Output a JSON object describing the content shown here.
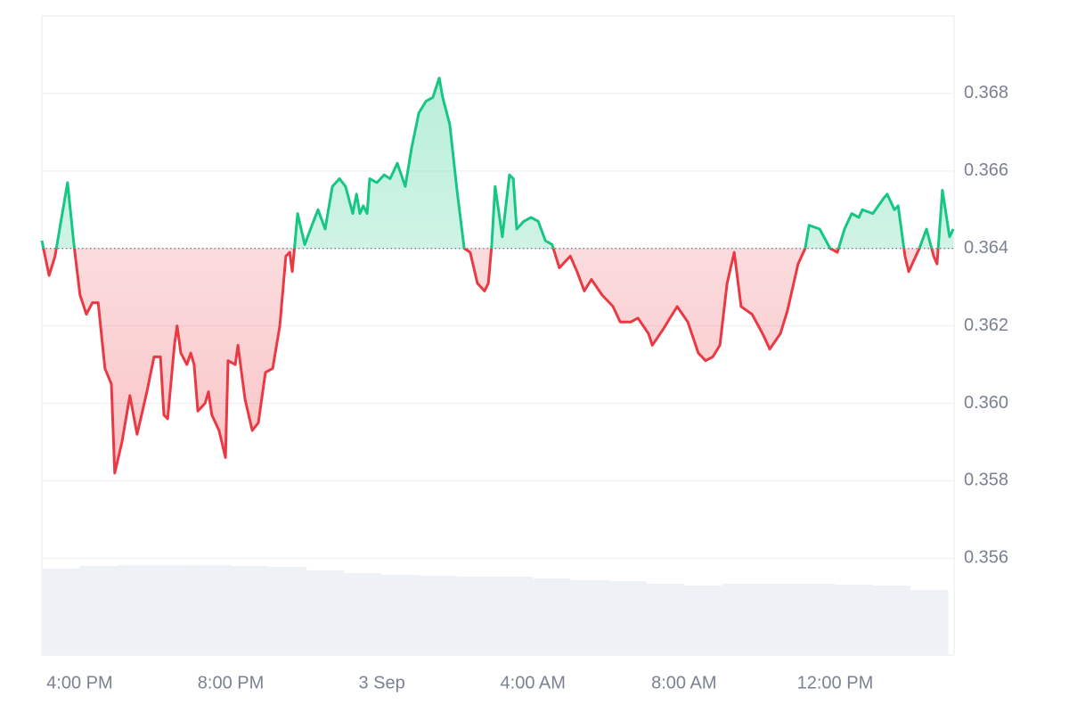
{
  "chart_data": {
    "type": "line",
    "x": [
      0.0,
      0.19,
      0.35,
      0.54,
      0.68,
      0.85,
      1.01,
      1.18,
      1.34,
      1.49,
      1.67,
      1.84,
      1.93,
      2.12,
      2.33,
      2.52,
      2.78,
      2.97,
      3.14,
      3.23,
      3.33,
      3.51,
      3.58,
      3.68,
      3.84,
      3.94,
      4.03,
      4.13,
      4.32,
      4.41,
      4.5,
      4.69,
      4.86,
      4.93,
      5.12,
      5.19,
      5.38,
      5.57,
      5.73,
      5.92,
      6.11,
      6.3,
      6.46,
      6.56,
      6.63,
      6.77,
      6.96,
      7.15,
      7.31,
      7.5,
      7.69,
      7.88,
      8.04,
      8.23,
      8.33,
      8.42,
      8.51,
      8.61,
      8.68,
      8.87,
      9.06,
      9.22,
      9.41,
      9.62,
      9.79,
      9.98,
      10.17,
      10.35,
      10.52,
      10.61,
      10.8,
      10.99,
      11.18,
      11.34,
      11.53,
      11.72,
      11.82,
      11.91,
      12.0,
      12.19,
      12.38,
      12.48,
      12.57,
      12.76,
      12.95,
      13.14,
      13.33,
      13.51,
      13.7,
      13.99,
      14.17,
      14.36,
      14.55,
      14.83,
      15.12,
      15.31,
      15.59,
      15.78,
      16.06,
      16.16,
      16.44,
      16.63,
      16.82,
      17.1,
      17.38,
      17.57,
      17.76,
      17.95,
      18.14,
      18.33,
      18.51,
      18.8,
      19.08,
      19.27,
      19.55,
      19.74,
      20.02,
      20.21,
      20.31,
      20.59,
      20.87,
      21.06,
      21.25,
      21.44,
      21.63,
      21.72,
      22.0,
      22.29,
      22.38,
      22.57,
      22.67,
      22.85,
      22.95,
      23.23,
      23.42,
      23.61,
      23.7,
      23.84,
      24.03,
      24.13
    ],
    "values": [
      0.3642,
      0.3633,
      0.3638,
      0.3649,
      0.3657,
      0.3641,
      0.3628,
      0.3623,
      0.3626,
      0.3626,
      0.3609,
      0.3605,
      0.3582,
      0.359,
      0.3602,
      0.3592,
      0.3603,
      0.3612,
      0.3612,
      0.3597,
      0.3596,
      0.3615,
      0.362,
      0.3613,
      0.361,
      0.3613,
      0.361,
      0.3598,
      0.36,
      0.3603,
      0.3597,
      0.3593,
      0.3586,
      0.3611,
      0.361,
      0.3615,
      0.3601,
      0.3593,
      0.3595,
      0.3608,
      0.3609,
      0.362,
      0.3638,
      0.3639,
      0.3634,
      0.3649,
      0.3641,
      0.3646,
      0.365,
      0.3645,
      0.3656,
      0.3658,
      0.3656,
      0.3649,
      0.3654,
      0.3649,
      0.3651,
      0.3649,
      0.3658,
      0.3657,
      0.3659,
      0.3658,
      0.3662,
      0.3656,
      0.3666,
      0.3675,
      0.3678,
      0.3679,
      0.3684,
      0.3679,
      0.3672,
      0.3655,
      0.364,
      0.3639,
      0.3631,
      0.3629,
      0.3631,
      0.3641,
      0.3656,
      0.3643,
      0.3659,
      0.3658,
      0.3645,
      0.3647,
      0.3648,
      0.3647,
      0.3642,
      0.3641,
      0.3635,
      0.3638,
      0.3634,
      0.3629,
      0.3632,
      0.3628,
      0.3625,
      0.3621,
      0.3621,
      0.3622,
      0.3618,
      0.3615,
      0.3619,
      0.3622,
      0.3625,
      0.3621,
      0.3613,
      0.3611,
      0.3612,
      0.3615,
      0.3631,
      0.3639,
      0.3625,
      0.3623,
      0.3618,
      0.3614,
      0.3618,
      0.3624,
      0.3636,
      0.364,
      0.3646,
      0.3645,
      0.364,
      0.3639,
      0.3645,
      0.3649,
      0.3648,
      0.365,
      0.3649,
      0.3653,
      0.3654,
      0.365,
      0.3651,
      0.3638,
      0.3634,
      0.364,
      0.3645,
      0.3638,
      0.3636,
      0.3655,
      0.3643,
      0.3645
    ],
    "reference_value": 0.364,
    "up_color": "#16c784",
    "down_color": "#ea3943",
    "volume": {
      "x": [
        0,
        1,
        2,
        3,
        4,
        5,
        6,
        7,
        8,
        9,
        10,
        11,
        12,
        13,
        14,
        15,
        16,
        17,
        18,
        19,
        20,
        21,
        22,
        23
      ],
      "values": [
        97,
        100,
        101,
        101,
        101,
        100,
        99,
        95,
        92,
        90,
        89,
        88,
        88,
        86,
        84,
        83,
        80,
        78,
        80,
        80,
        80,
        79,
        78,
        73
      ],
      "color": "#eef1f5"
    },
    "xlim": [
      0,
      24.15
    ],
    "xticks": [
      {
        "value": 1,
        "label": "4:00 PM"
      },
      {
        "value": 5,
        "label": "8:00 PM"
      },
      {
        "value": 9,
        "label": "3 Sep"
      },
      {
        "value": 13,
        "label": "4:00 AM"
      },
      {
        "value": 17,
        "label": "8:00 AM"
      },
      {
        "value": 21,
        "label": "12:00 PM"
      }
    ],
    "ylim": [
      0.3535,
      0.37
    ],
    "yticks": [
      0.356,
      0.358,
      {
        "value": 0.36,
        "label": "0.360"
      },
      0.362,
      0.364,
      0.366,
      0.368
    ],
    "grid": true
  }
}
